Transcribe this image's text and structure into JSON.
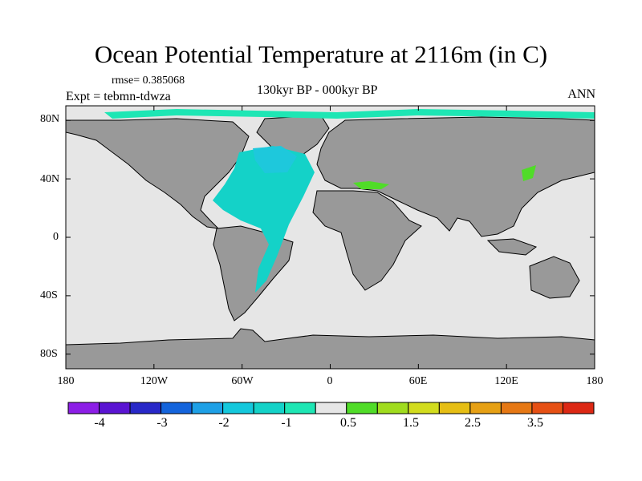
{
  "title": "Ocean Potential Temperature at 2116m (in C)",
  "rmse": "rmse= 0.385068",
  "experiment": "Expt = tebmn-tdwza",
  "subtitle": "130kyr BP - 000kyr BP",
  "season": "ANN",
  "map": {
    "land_color": "#999999",
    "ocean_zero_color": "#e6e6e6",
    "lat_labels": [
      "80N",
      "40N",
      "0",
      "40S",
      "80S"
    ],
    "lat_values": [
      80,
      40,
      0,
      -40,
      -80
    ],
    "lon_labels": [
      "180",
      "120W",
      "60W",
      "0",
      "60E",
      "120E",
      "180"
    ],
    "lon_values": [
      -180,
      -120,
      -60,
      0,
      60,
      120,
      180
    ]
  },
  "colorbar": {
    "colors": [
      "#8c1ee6",
      "#5a14d2",
      "#2828c8",
      "#1464dc",
      "#1ea0e6",
      "#14c8dc",
      "#14d2c8",
      "#1ee6b4",
      "#e6e6e6",
      "#50dc28",
      "#a0dc1e",
      "#d2dc1e",
      "#e6be14",
      "#e6a014",
      "#e67814",
      "#e65014",
      "#dc2814"
    ],
    "labels": [
      "-4",
      "-3",
      "-2",
      "-1",
      "0.5",
      "1.5",
      "2.5",
      "3.5"
    ]
  }
}
